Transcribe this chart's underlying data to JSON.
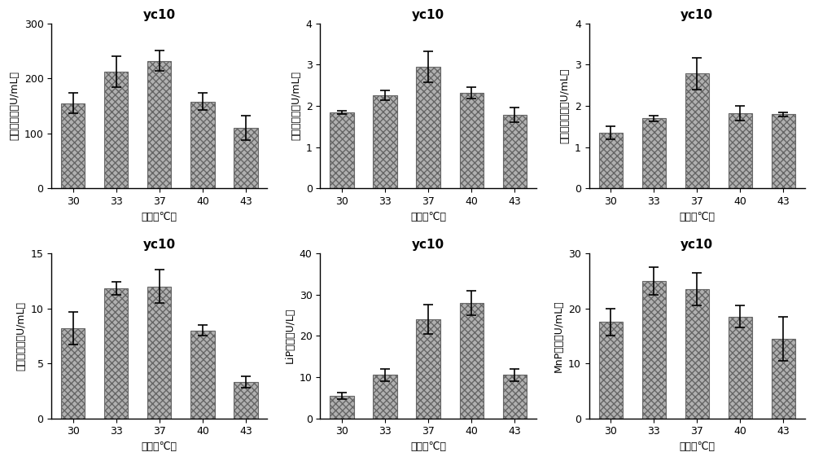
{
  "title": "yc10",
  "categories": [
    "30",
    "33",
    "37",
    "40",
    "43"
  ],
  "xlabel": "温度（℃）",
  "subplots": [
    {
      "ylabel": "果胶酶活力（U/mL）",
      "values": [
        155,
        212,
        232,
        158,
        110
      ],
      "errors": [
        18,
        28,
        18,
        15,
        22
      ],
      "ylim": [
        0,
        300
      ],
      "yticks": [
        0,
        100,
        200,
        300
      ]
    },
    {
      "ylabel": "淦粉酶活力（U/mL）",
      "values": [
        1.85,
        2.25,
        2.95,
        2.32,
        1.78
      ],
      "errors": [
        0.04,
        0.12,
        0.38,
        0.14,
        0.18
      ],
      "ylim": [
        0,
        4
      ],
      "yticks": [
        0,
        1,
        2,
        3,
        4
      ]
    },
    {
      "ylabel": "纤维素酶活力（U/mL）",
      "values": [
        1.35,
        1.7,
        2.78,
        1.82,
        1.8
      ],
      "errors": [
        0.15,
        0.07,
        0.38,
        0.18,
        0.05
      ],
      "ylim": [
        0,
        4
      ],
      "yticks": [
        0,
        1,
        2,
        3,
        4
      ]
    },
    {
      "ylabel": "蛋白酶活力（U/mL）",
      "values": [
        8.2,
        11.8,
        12.0,
        8.0,
        3.3
      ],
      "errors": [
        1.5,
        0.6,
        1.5,
        0.5,
        0.5
      ],
      "ylim": [
        0,
        15
      ],
      "yticks": [
        0,
        5,
        10,
        15
      ]
    },
    {
      "ylabel": "LiP活力（U/L）",
      "values": [
        5.5,
        10.5,
        24.0,
        28.0,
        10.5
      ],
      "errors": [
        0.8,
        1.5,
        3.5,
        3.0,
        1.5
      ],
      "ylim": [
        0,
        40
      ],
      "yticks": [
        0,
        10,
        20,
        30,
        40
      ]
    },
    {
      "ylabel": "MnP活力（U/mL）",
      "values": [
        17.5,
        25.0,
        23.5,
        18.5,
        14.5
      ],
      "errors": [
        2.5,
        2.5,
        3.0,
        2.0,
        4.0
      ],
      "ylim": [
        0,
        30
      ],
      "yticks": [
        0,
        10,
        20,
        30
      ]
    }
  ],
  "bar_color": "#b0b0b0",
  "bar_hatch": "xxxx",
  "bar_edgecolor": "#666666",
  "background_color": "#ffffff",
  "title_fontsize": 11,
  "label_fontsize": 9,
  "tick_fontsize": 9
}
